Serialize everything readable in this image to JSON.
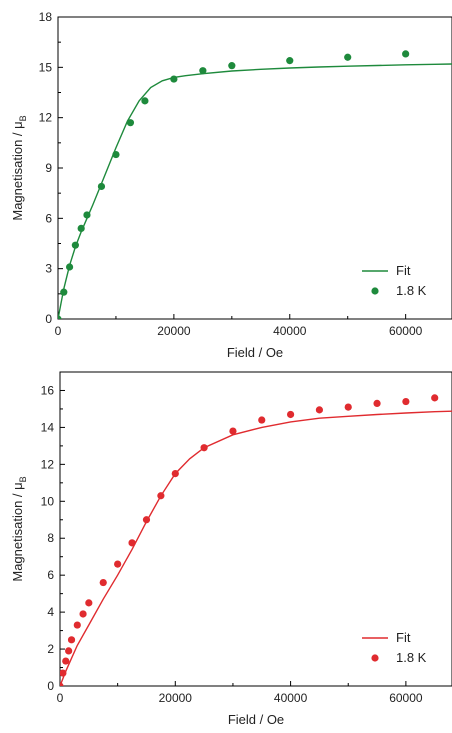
{
  "chart_data": [
    {
      "type": "scatter",
      "xlabel": "Field / Oe",
      "ylabel": "Magnetisation / μ",
      "ylabel_sub": "B",
      "xlim": [
        0,
        68000
      ],
      "ylim": [
        0,
        18
      ],
      "xticks": [
        0,
        20000,
        40000,
        60000
      ],
      "yticks": [
        0,
        3,
        6,
        9,
        12,
        15,
        18
      ],
      "grid": false,
      "legend": "bottom-right",
      "color": "#1e8a3c",
      "series": [
        {
          "name": "Fit",
          "kind": "line",
          "x": [
            0,
            500,
            1000,
            2000,
            3000,
            4000,
            5000,
            6000,
            8000,
            10000,
            12000,
            14000,
            16000,
            18000,
            20000,
            22000,
            25000,
            30000,
            35000,
            40000,
            45000,
            50000,
            55000,
            60000,
            65000,
            68000
          ],
          "y": [
            0,
            0.9,
            1.8,
            3.2,
            4.3,
            5.2,
            6.0,
            6.8,
            8.5,
            10.2,
            11.8,
            13.0,
            13.8,
            14.2,
            14.4,
            14.5,
            14.62,
            14.78,
            14.88,
            14.96,
            15.02,
            15.07,
            15.11,
            15.15,
            15.18,
            15.2
          ]
        },
        {
          "name": "1.8 K",
          "kind": "points",
          "x": [
            0,
            1000,
            2000,
            3000,
            4000,
            5000,
            7500,
            10000,
            12500,
            15000,
            20000,
            25000,
            30000,
            40000,
            50000,
            60000
          ],
          "y": [
            0,
            1.6,
            3.1,
            4.4,
            5.4,
            6.2,
            7.9,
            9.8,
            11.7,
            13.0,
            14.3,
            14.8,
            15.1,
            15.4,
            15.6,
            15.8
          ]
        }
      ]
    },
    {
      "type": "scatter",
      "xlabel": "Field / Oe",
      "ylabel": "Magnetisation / μ",
      "ylabel_sub": "B",
      "xlim": [
        0,
        68000
      ],
      "ylim": [
        0,
        17
      ],
      "xticks": [
        0,
        20000,
        40000,
        60000
      ],
      "yticks": [
        0,
        2,
        4,
        6,
        8,
        10,
        12,
        14,
        16
      ],
      "grid": false,
      "legend": "bottom-right",
      "color": "#e02b2f",
      "series": [
        {
          "name": "Fit",
          "kind": "line",
          "x": [
            0,
            1000,
            2000,
            3000,
            5000,
            7500,
            10000,
            12500,
            15000,
            17500,
            20000,
            22500,
            25000,
            30000,
            35000,
            40000,
            45000,
            50000,
            55000,
            60000,
            65000,
            68000
          ],
          "y": [
            0,
            0.8,
            1.5,
            2.2,
            3.3,
            4.7,
            6.0,
            7.4,
            8.9,
            10.3,
            11.5,
            12.3,
            12.9,
            13.6,
            14.0,
            14.3,
            14.5,
            14.6,
            14.7,
            14.78,
            14.85,
            14.88
          ]
        },
        {
          "name": "1.8 K",
          "kind": "points",
          "x": [
            0,
            500,
            1000,
            1500,
            2000,
            3000,
            4000,
            5000,
            7500,
            10000,
            12500,
            15000,
            17500,
            20000,
            25000,
            30000,
            35000,
            40000,
            45000,
            50000,
            55000,
            60000,
            65000
          ],
          "y": [
            0,
            0.7,
            1.35,
            1.9,
            2.5,
            3.3,
            3.9,
            4.5,
            5.6,
            6.6,
            7.75,
            9.0,
            10.3,
            11.5,
            12.9,
            13.8,
            14.4,
            14.7,
            14.95,
            15.1,
            15.3,
            15.4,
            15.6
          ]
        }
      ]
    }
  ]
}
